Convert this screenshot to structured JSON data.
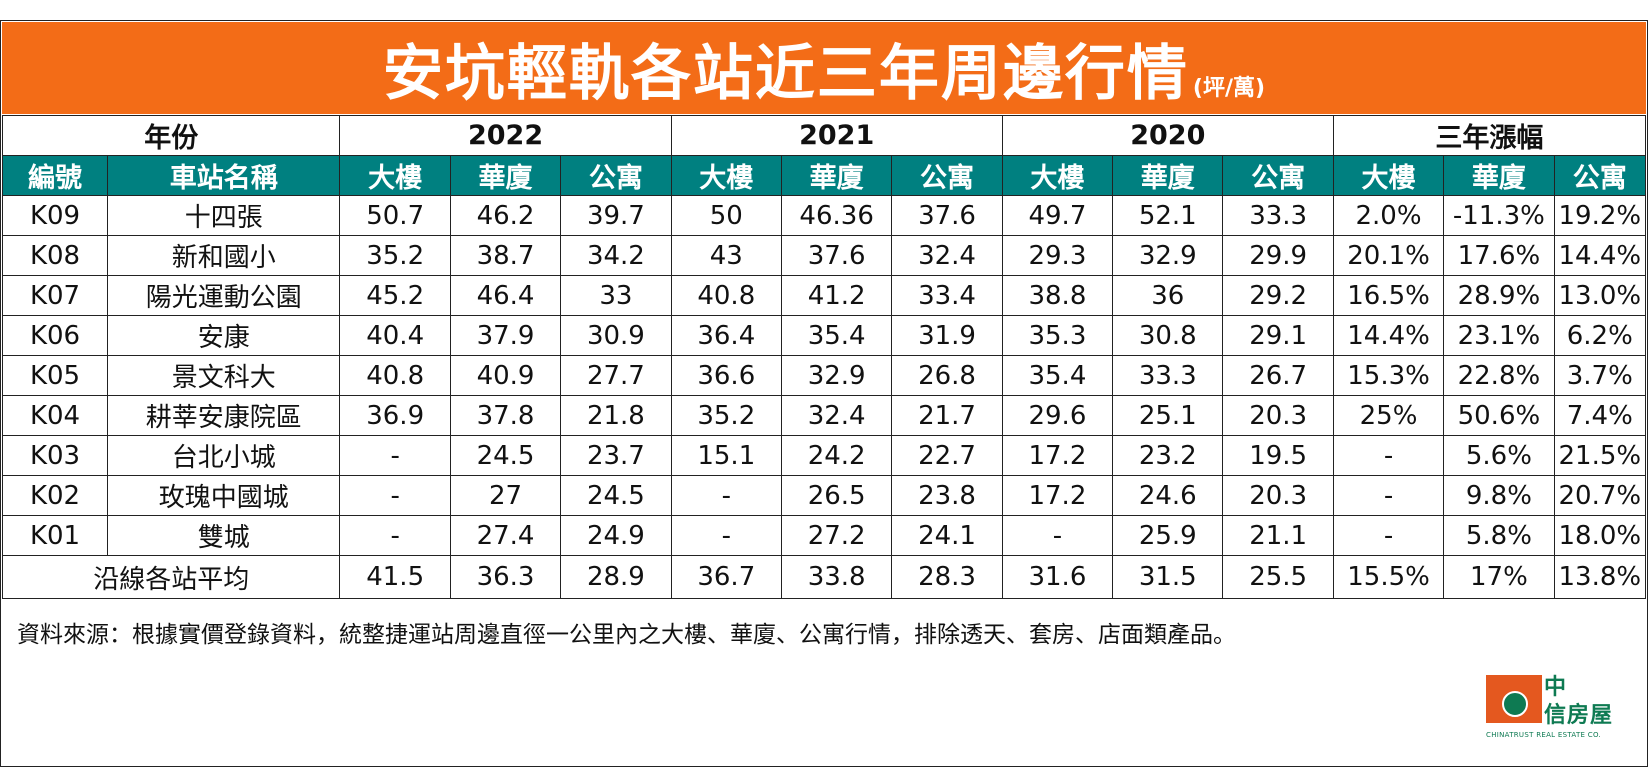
{
  "title": {
    "main": "安坑輕軌各站近三年周邊行情",
    "unit": "(坪/萬)"
  },
  "header": {
    "year_label": "年份",
    "groups": [
      "2022",
      "2021",
      "2020",
      "三年漲幅"
    ],
    "col_code": "編號",
    "col_station": "車站名稱",
    "types": [
      "大樓",
      "華廈",
      "公寓",
      "大樓",
      "華廈",
      "公寓",
      "大樓",
      "華廈",
      "公寓",
      "大樓",
      "華廈",
      "公寓"
    ]
  },
  "rows": [
    {
      "code": "K09",
      "station": "十四張",
      "values": [
        "50.7",
        "46.2",
        "39.7",
        "50",
        "46.36",
        "37.6",
        "49.7",
        "52.1",
        "33.3",
        "2.0%",
        "-11.3%",
        "19.2%"
      ]
    },
    {
      "code": "K08",
      "station": "新和國小",
      "values": [
        "35.2",
        "38.7",
        "34.2",
        "43",
        "37.6",
        "32.4",
        "29.3",
        "32.9",
        "29.9",
        "20.1%",
        "17.6%",
        "14.4%"
      ]
    },
    {
      "code": "K07",
      "station": "陽光運動公園",
      "values": [
        "45.2",
        "46.4",
        "33",
        "40.8",
        "41.2",
        "33.4",
        "38.8",
        "36",
        "29.2",
        "16.5%",
        "28.9%",
        "13.0%"
      ]
    },
    {
      "code": "K06",
      "station": "安康",
      "values": [
        "40.4",
        "37.9",
        "30.9",
        "36.4",
        "35.4",
        "31.9",
        "35.3",
        "30.8",
        "29.1",
        "14.4%",
        "23.1%",
        "6.2%"
      ]
    },
    {
      "code": "K05",
      "station": "景文科大",
      "values": [
        "40.8",
        "40.9",
        "27.7",
        "36.6",
        "32.9",
        "26.8",
        "35.4",
        "33.3",
        "26.7",
        "15.3%",
        "22.8%",
        "3.7%"
      ]
    },
    {
      "code": "K04",
      "station": "耕莘安康院區",
      "values": [
        "36.9",
        "37.8",
        "21.8",
        "35.2",
        "32.4",
        "21.7",
        "29.6",
        "25.1",
        "20.3",
        "25%",
        "50.6%",
        "7.4%"
      ]
    },
    {
      "code": "K03",
      "station": "台北小城",
      "values": [
        "-",
        "24.5",
        "23.7",
        "15.1",
        "24.2",
        "22.7",
        "17.2",
        "23.2",
        "19.5",
        "-",
        "5.6%",
        "21.5%"
      ]
    },
    {
      "code": "K02",
      "station": "玫瑰中國城",
      "values": [
        "-",
        "27",
        "24.5",
        "-",
        "26.5",
        "23.8",
        "17.2",
        "24.6",
        "20.3",
        "-",
        "9.8%",
        "20.7%"
      ]
    },
    {
      "code": "K01",
      "station": "雙城",
      "values": [
        "-",
        "27.4",
        "24.9",
        "-",
        "27.2",
        "24.1",
        "-",
        "25.9",
        "21.1",
        "-",
        "5.8%",
        "18.0%"
      ]
    }
  ],
  "average": {
    "label": "沿線各站平均",
    "values": [
      "41.5",
      "36.3",
      "28.9",
      "36.7",
      "33.8",
      "28.3",
      "31.6",
      "31.5",
      "25.5",
      "15.5%",
      "17%",
      "13.8%"
    ]
  },
  "source": "資料來源：根據實價登錄資料，統整捷運站周邊直徑一公里內之大樓、華廈、公寓行情，排除透天、套房、店面類產品。",
  "logo": {
    "zh_line1": "中",
    "zh_line2": "信房屋",
    "en": "CHINATRUST REAL ESTATE CO."
  },
  "colors": {
    "title_bg": "#f36c17",
    "header_bg": "#008080",
    "negative": "#e0201b",
    "logo_green": "#0e7a52",
    "logo_orange": "#e4581f"
  }
}
